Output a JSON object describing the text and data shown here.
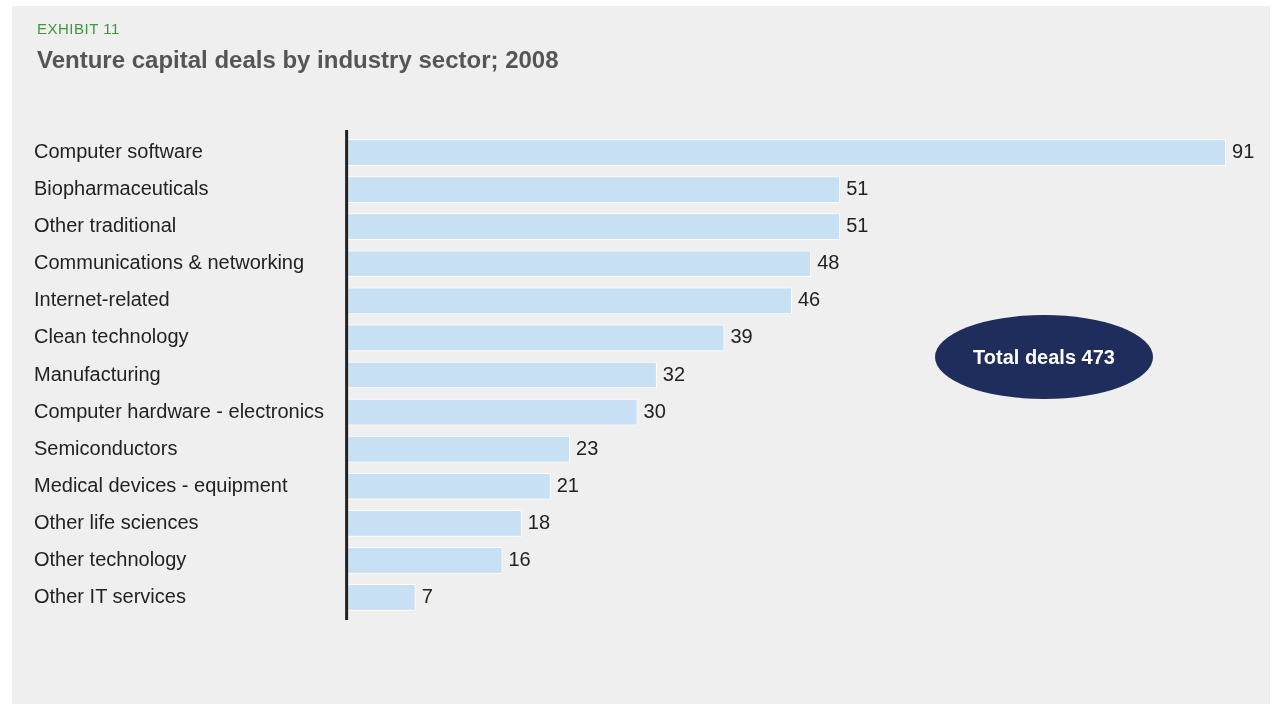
{
  "chart_data": {
    "type": "bar",
    "orientation": "horizontal",
    "subtitle": "EXHIBIT 11",
    "title": "Venture capital deals by industry sector; 2008",
    "categories": [
      "Computer software",
      "Biopharmaceuticals",
      "Other traditional",
      "Communications & networking",
      "Internet-related",
      "Clean technology",
      "Manufacturing",
      "Computer hardware - electronics",
      "Semiconductors",
      "Medical devices - equipment",
      "Other life sciences",
      "Other technology",
      "Other IT services"
    ],
    "values": [
      91,
      51,
      51,
      48,
      46,
      39,
      32,
      30,
      23,
      21,
      18,
      16,
      7
    ],
    "color": "#c8e0f4",
    "data_labels": true,
    "grid": false,
    "legend": false,
    "annotations": [
      "Total deals 473"
    ]
  }
}
